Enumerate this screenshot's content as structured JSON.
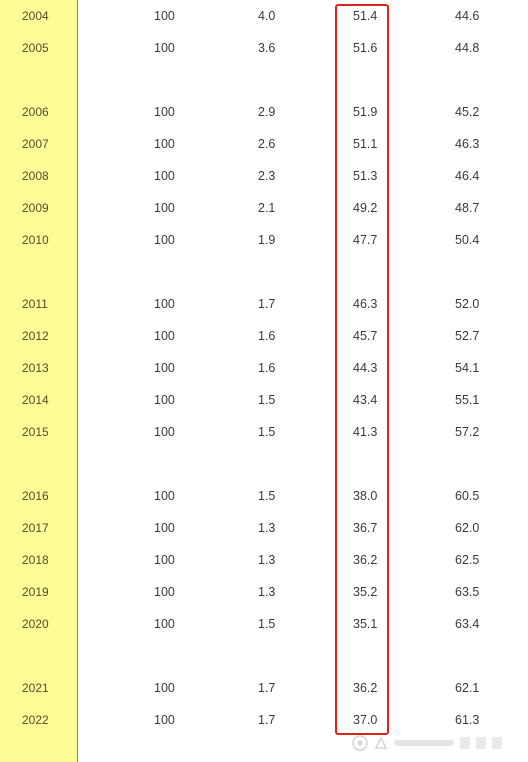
{
  "rows": [
    {
      "year": "2004",
      "a": "100",
      "b": "4.0",
      "c": "51.4",
      "d": "44.6"
    },
    {
      "year": "2005",
      "a": "100",
      "b": "3.6",
      "c": "51.6",
      "d": "44.8"
    },
    {
      "year": "2006",
      "a": "100",
      "b": "2.9",
      "c": "51.9",
      "d": "45.2"
    },
    {
      "year": "2007",
      "a": "100",
      "b": "2.6",
      "c": "51.1",
      "d": "46.3"
    },
    {
      "year": "2008",
      "a": "100",
      "b": "2.3",
      "c": "51.3",
      "d": "46.4"
    },
    {
      "year": "2009",
      "a": "100",
      "b": "2.1",
      "c": "49.2",
      "d": "48.7"
    },
    {
      "year": "2010",
      "a": "100",
      "b": "1.9",
      "c": "47.7",
      "d": "50.4"
    },
    {
      "year": "2011",
      "a": "100",
      "b": "1.7",
      "c": "46.3",
      "d": "52.0"
    },
    {
      "year": "2012",
      "a": "100",
      "b": "1.6",
      "c": "45.7",
      "d": "52.7"
    },
    {
      "year": "2013",
      "a": "100",
      "b": "1.6",
      "c": "44.3",
      "d": "54.1"
    },
    {
      "year": "2014",
      "a": "100",
      "b": "1.5",
      "c": "43.4",
      "d": "55.1"
    },
    {
      "year": "2015",
      "a": "100",
      "b": "1.5",
      "c": "41.3",
      "d": "57.2"
    },
    {
      "year": "2016",
      "a": "100",
      "b": "1.5",
      "c": "38.0",
      "d": "60.5"
    },
    {
      "year": "2017",
      "a": "100",
      "b": "1.3",
      "c": "36.7",
      "d": "62.0"
    },
    {
      "year": "2018",
      "a": "100",
      "b": "1.3",
      "c": "36.2",
      "d": "62.5"
    },
    {
      "year": "2019",
      "a": "100",
      "b": "1.3",
      "c": "35.2",
      "d": "63.5"
    },
    {
      "year": "2020",
      "a": "100",
      "b": "1.5",
      "c": "35.1",
      "d": "63.4"
    },
    {
      "year": "2021",
      "a": "100",
      "b": "1.7",
      "c": "36.2",
      "d": "62.1"
    },
    {
      "year": "2022",
      "a": "100",
      "b": "1.7",
      "c": "37.0",
      "d": "61.3"
    }
  ],
  "colors": {
    "year_column_bg": "#fdfd97",
    "highlight_border": "#d9261c",
    "text": "#3a3a3a"
  },
  "highlighted_column": "c"
}
